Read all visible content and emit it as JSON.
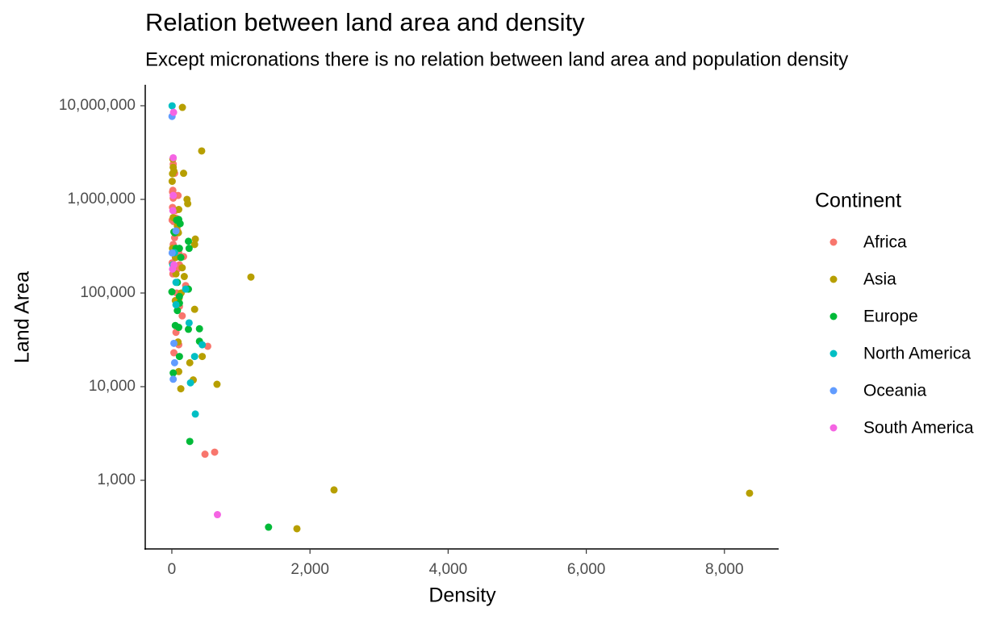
{
  "chart_data": {
    "type": "scatter",
    "title": "Relation between land area and density",
    "subtitle": "Except micronations there is no relation between land area and population density",
    "x_label": "Density",
    "y_label": "Land Area",
    "legend_title": "Continent",
    "legend": "right",
    "log_y": true,
    "grid": false,
    "xlim": [
      -385,
      8785
    ],
    "xticks": [
      0,
      {
        "value": 2000,
        "label": "2,000"
      },
      {
        "value": 4000,
        "label": "4,000"
      },
      {
        "value": 6000,
        "label": "6,000"
      },
      {
        "value": 8000,
        "label": "8,000"
      }
    ],
    "ylim": [
      185,
      16750000
    ],
    "yticks": [
      {
        "value": 1000,
        "label": "1,000"
      },
      {
        "value": 10000,
        "label": "10,000"
      },
      {
        "value": 100000,
        "label": "100,000"
      },
      {
        "value": 1000000,
        "label": "1,000,000"
      },
      {
        "value": 10000000,
        "label": "10,000,000"
      }
    ],
    "series": [
      {
        "name": "Africa",
        "color": "#F8766D",
        "x": [
          20,
          40,
          15,
          40,
          90,
          20,
          10,
          50,
          25,
          60,
          5,
          80,
          40,
          20,
          100,
          170,
          50,
          110,
          5,
          15,
          80,
          200,
          70,
          110,
          150,
          60,
          30,
          520,
          480,
          620,
          100,
          10,
          30
        ],
        "values": [
          2380000,
          1900000,
          1250000,
          1100000,
          1100000,
          1030000,
          820000,
          760000,
          580000,
          630000,
          600000,
          470000,
          390000,
          330000,
          270000,
          245000,
          240000,
          200000,
          210000,
          160000,
          180000,
          120000,
          100000,
          72000,
          57000,
          38000,
          23000,
          27000,
          1900,
          2000,
          28000,
          1200000,
          620000
        ]
      },
      {
        "name": "Asia",
        "color": "#B79F00",
        "x": [
          153,
          432,
          1145,
          8364,
          2348,
          1811,
          654,
          340,
          330,
          330,
          440,
          310,
          260,
          130,
          100,
          90,
          180,
          170,
          15,
          20,
          30,
          230,
          100,
          80,
          40,
          10,
          95,
          150,
          20,
          60,
          135,
          220,
          105,
          55,
          50,
          5,
          10
        ],
        "values": [
          9600000,
          3290000,
          148000,
          728,
          789,
          304,
          10600,
          377000,
          330000,
          67000,
          21000,
          11800,
          18000,
          9500,
          14500,
          30000,
          150000,
          1900000,
          2700000,
          2200000,
          2000000,
          900000,
          780000,
          520000,
          450000,
          300000,
          440000,
          186000,
          640000,
          160000,
          100000,
          1000000,
          88000,
          240000,
          83000,
          1560000,
          1880000
        ]
      },
      {
        "name": "Europe",
        "color": "#00BA38",
        "x": [
          240,
          120,
          110,
          70,
          100,
          40,
          250,
          400,
          400,
          240,
          110,
          80,
          50,
          100,
          110,
          20,
          1,
          30,
          130,
          80,
          1400,
          260,
          110,
          240,
          60
        ],
        "values": [
          357000,
          550000,
          300000,
          600000,
          610000,
          440000,
          300000,
          41500,
          30500,
          41000,
          92000,
          65000,
          45000,
          43000,
          21000,
          14000,
          103000,
          450000,
          240000,
          130000,
          316,
          2600,
          78000,
          110000,
          300000
        ]
      },
      {
        "name": "North America",
        "color": "#00BFC4",
        "x": [
          4,
          340,
          270,
          330,
          440,
          250,
          200,
          60,
          40,
          60,
          15
        ],
        "values": [
          9980000,
          5100,
          11000,
          21000,
          28000,
          48000,
          110000,
          130000,
          270000,
          75000,
          200000
        ]
      },
      {
        "name": "Oceania",
        "color": "#619CFF",
        "x": [
          3,
          5,
          40,
          20,
          30,
          60
        ],
        "values": [
          7690000,
          268000,
          18000,
          12000,
          29000,
          460000
        ]
      },
      {
        "name": "South America",
        "color": "#F564E3",
        "x": [
          25,
          660,
          20,
          10,
          30,
          15,
          20
        ],
        "values": [
          8500000,
          430,
          1100000,
          180000,
          200000,
          760000,
          2780000
        ]
      }
    ]
  }
}
